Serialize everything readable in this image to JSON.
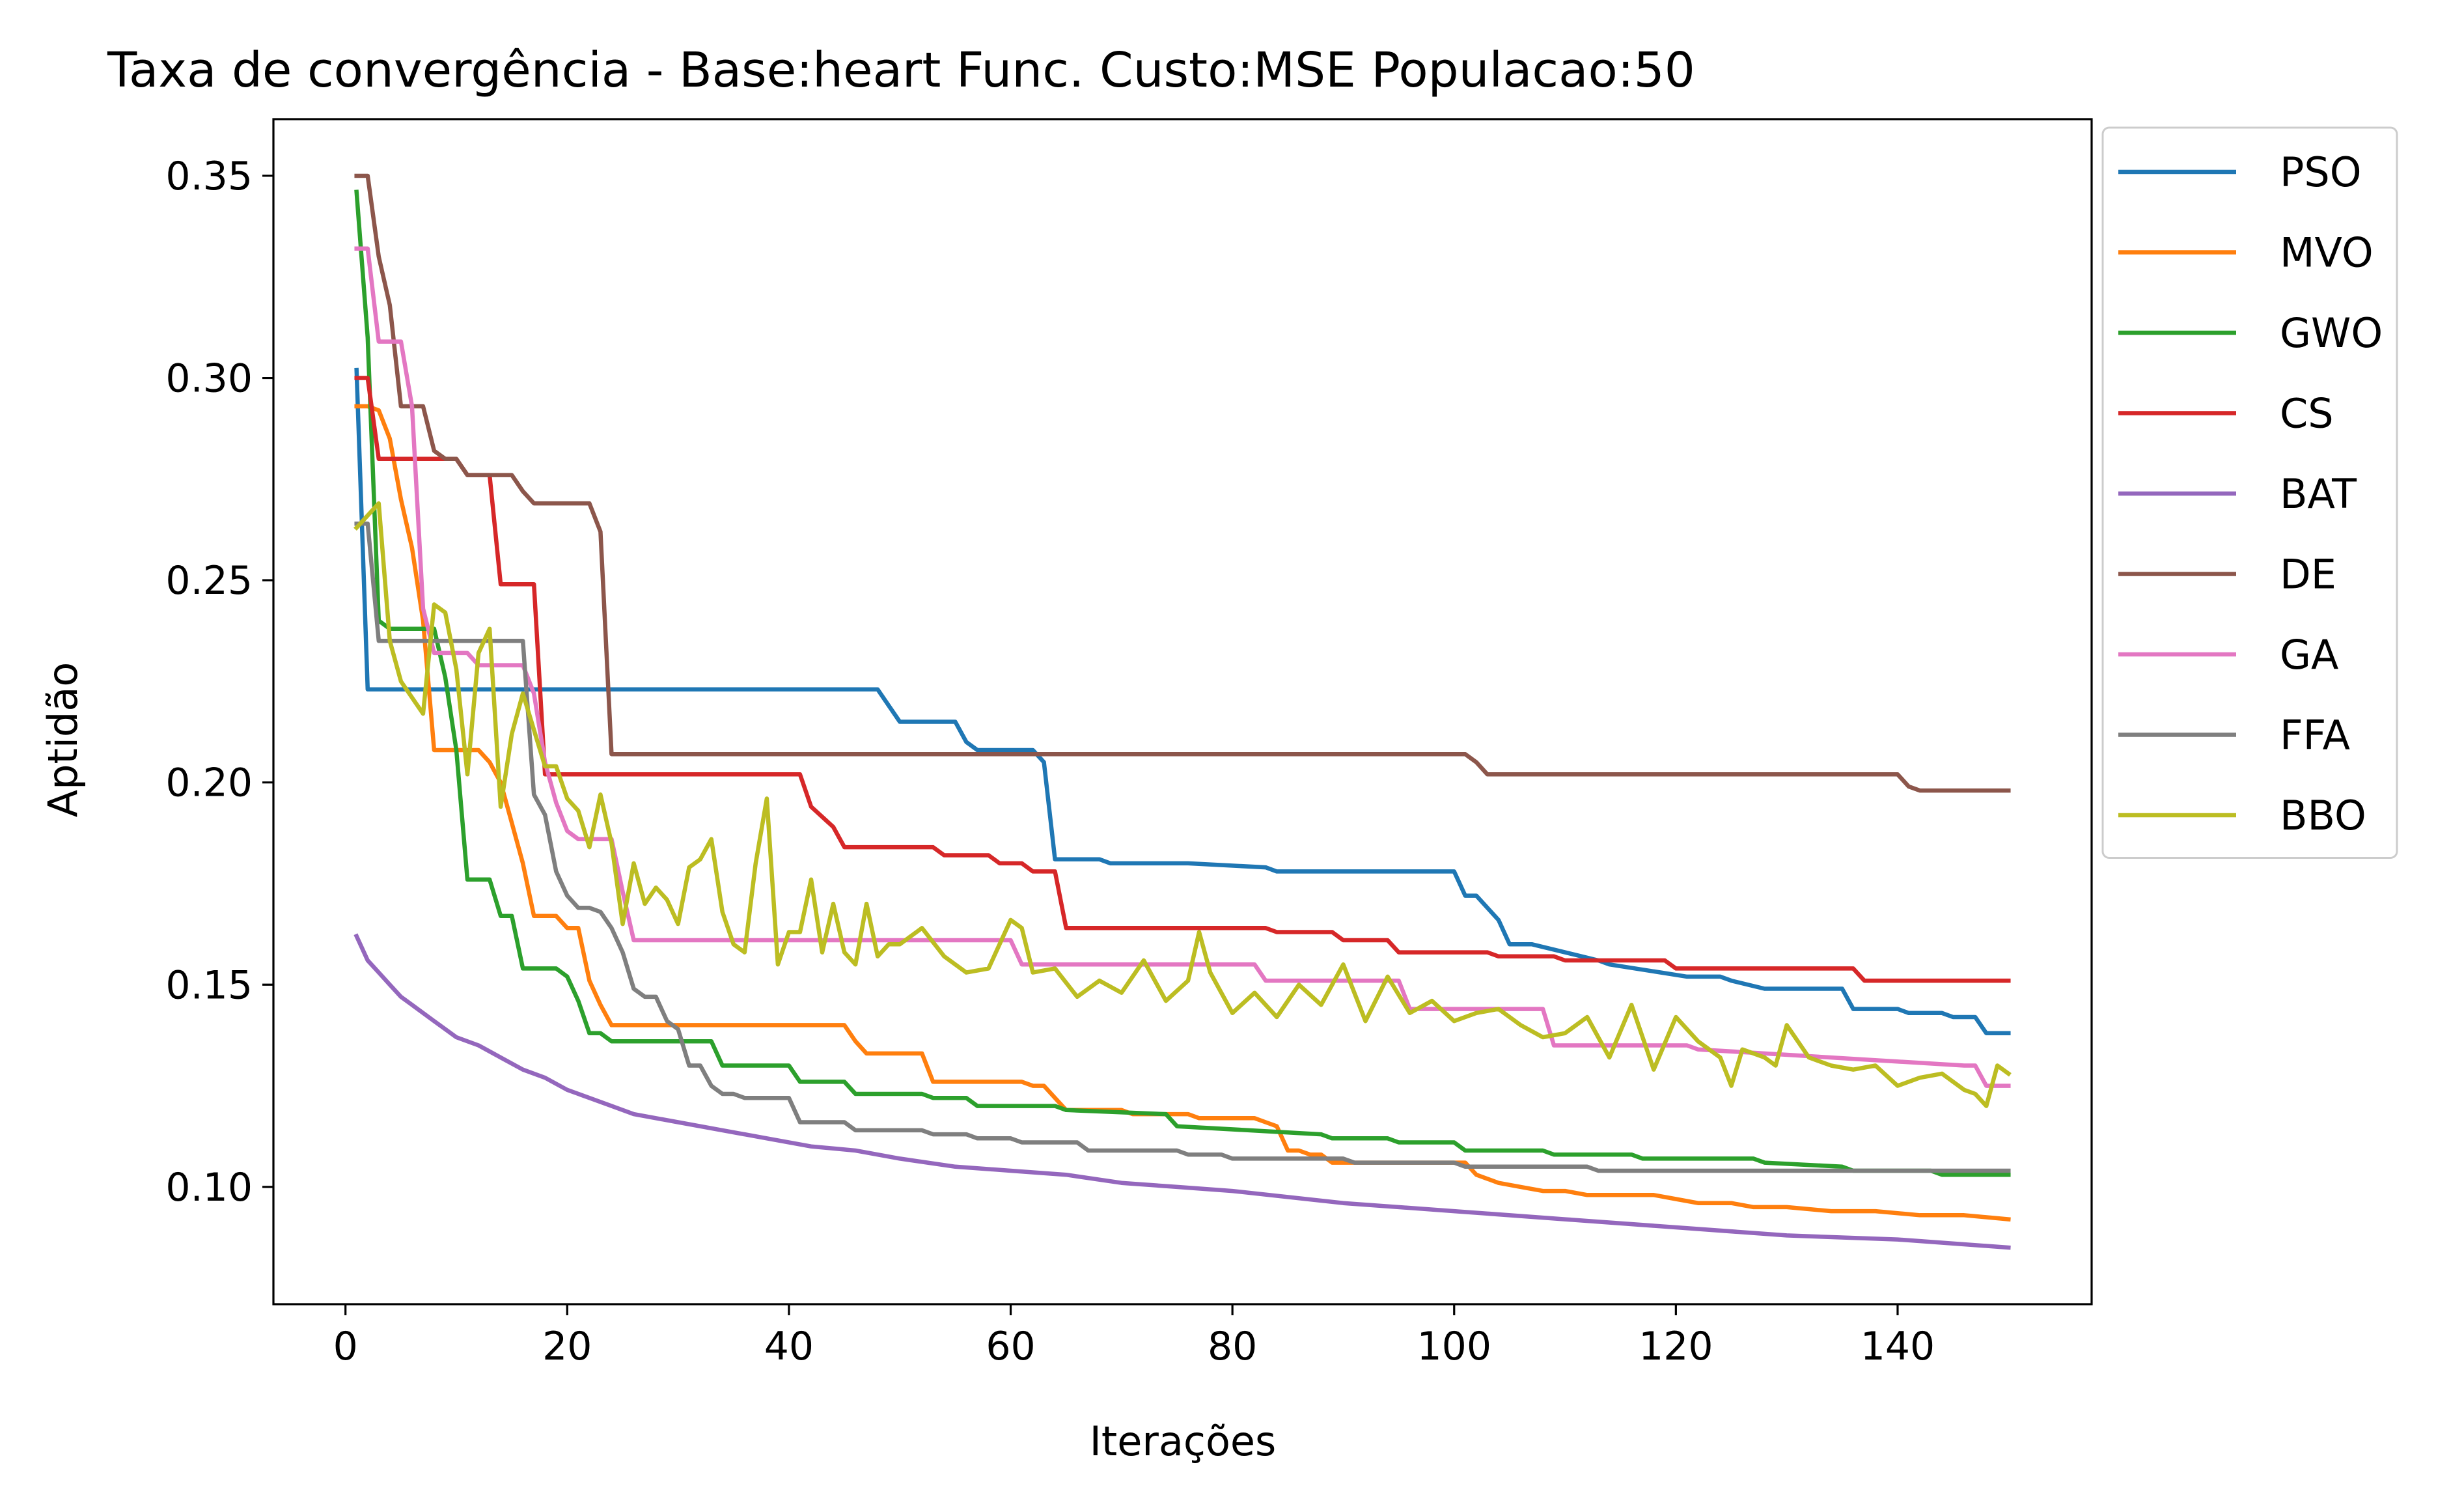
{
  "chart_data": {
    "type": "line",
    "title": "Taxa de convergência - Base:heart Func. Custo:MSE Populacao:50",
    "xlabel": "Iterações",
    "ylabel": "Aptidão",
    "xlim": [
      -6.5,
      157.5
    ],
    "ylim": [
      0.071,
      0.364
    ],
    "xticks": [
      0,
      20,
      40,
      60,
      80,
      100,
      120,
      140
    ],
    "xtick_labels": [
      "0",
      "20",
      "40",
      "60",
      "80",
      "100",
      "120",
      "140"
    ],
    "yticks": [
      0.1,
      0.15,
      0.2,
      0.25,
      0.3,
      0.35
    ],
    "ytick_labels": [
      "0.10",
      "0.15",
      "0.20",
      "0.25",
      "0.30",
      "0.35"
    ],
    "grid": false,
    "legend_placement": "outside-upper-right",
    "series": [
      {
        "name": "PSO",
        "color": "#1f77b4",
        "x": [
          1,
          2,
          3,
          48,
          49,
          50,
          51,
          55,
          56,
          57,
          62,
          63,
          64,
          65,
          68,
          69,
          75,
          76,
          83,
          84,
          89,
          100,
          101,
          102,
          104,
          105,
          106,
          107,
          113,
          114,
          121,
          124,
          125,
          128,
          131,
          135,
          136,
          140,
          141,
          144,
          145,
          147,
          148,
          150
        ],
        "y": [
          0.302,
          0.223,
          0.223,
          0.223,
          0.219,
          0.215,
          0.215,
          0.215,
          0.21,
          0.208,
          0.208,
          0.205,
          0.181,
          0.181,
          0.181,
          0.18,
          0.18,
          0.18,
          0.179,
          0.178,
          0.178,
          0.178,
          0.172,
          0.172,
          0.166,
          0.16,
          0.16,
          0.16,
          0.156,
          0.155,
          0.152,
          0.152,
          0.151,
          0.149,
          0.149,
          0.149,
          0.144,
          0.144,
          0.143,
          0.143,
          0.142,
          0.142,
          0.138,
          0.138
        ]
      },
      {
        "name": "MVO",
        "color": "#ff7f0e",
        "x": [
          1,
          2,
          3,
          4,
          5,
          6,
          7,
          8,
          9,
          10,
          11,
          12,
          13,
          14,
          15,
          16,
          17,
          18,
          19,
          20,
          21,
          22,
          23,
          24,
          25,
          26,
          27,
          45,
          46,
          47,
          48,
          52,
          53,
          61,
          62,
          63,
          64,
          65,
          66,
          70,
          71,
          76,
          77,
          82,
          83,
          84,
          85,
          86,
          87,
          88,
          89,
          90,
          91,
          101,
          102,
          103,
          104,
          106,
          108,
          110,
          112,
          114,
          118,
          120,
          122,
          125,
          127,
          130,
          134,
          138,
          142,
          146,
          150
        ],
        "y": [
          0.293,
          0.293,
          0.292,
          0.285,
          0.27,
          0.258,
          0.24,
          0.208,
          0.208,
          0.208,
          0.208,
          0.208,
          0.205,
          0.2,
          0.19,
          0.18,
          0.167,
          0.167,
          0.167,
          0.164,
          0.164,
          0.151,
          0.145,
          0.14,
          0.14,
          0.14,
          0.14,
          0.14,
          0.136,
          0.133,
          0.133,
          0.133,
          0.126,
          0.126,
          0.125,
          0.125,
          0.122,
          0.119,
          0.119,
          0.119,
          0.118,
          0.118,
          0.117,
          0.117,
          0.116,
          0.115,
          0.109,
          0.109,
          0.108,
          0.108,
          0.106,
          0.106,
          0.106,
          0.106,
          0.103,
          0.102,
          0.101,
          0.1,
          0.099,
          0.099,
          0.098,
          0.098,
          0.098,
          0.097,
          0.096,
          0.096,
          0.095,
          0.095,
          0.094,
          0.094,
          0.093,
          0.093,
          0.092
        ]
      },
      {
        "name": "GWO",
        "color": "#2ca02c",
        "x": [
          1,
          2,
          3,
          4,
          5,
          6,
          7,
          8,
          9,
          10,
          11,
          12,
          13,
          14,
          15,
          16,
          17,
          18,
          19,
          20,
          21,
          22,
          23,
          24,
          25,
          26,
          27,
          33,
          34,
          35,
          40,
          41,
          42,
          45,
          46,
          52,
          53,
          56,
          57,
          64,
          65,
          74,
          75,
          88,
          89,
          94,
          95,
          100,
          101,
          108,
          109,
          116,
          117,
          127,
          128,
          135,
          136,
          143,
          144,
          150
        ],
        "y": [
          0.346,
          0.31,
          0.24,
          0.238,
          0.238,
          0.238,
          0.238,
          0.238,
          0.226,
          0.208,
          0.176,
          0.176,
          0.176,
          0.167,
          0.167,
          0.154,
          0.154,
          0.154,
          0.154,
          0.152,
          0.146,
          0.138,
          0.138,
          0.136,
          0.136,
          0.136,
          0.136,
          0.136,
          0.13,
          0.13,
          0.13,
          0.126,
          0.126,
          0.126,
          0.123,
          0.123,
          0.122,
          0.122,
          0.12,
          0.12,
          0.119,
          0.118,
          0.115,
          0.113,
          0.112,
          0.112,
          0.111,
          0.111,
          0.109,
          0.109,
          0.108,
          0.108,
          0.107,
          0.107,
          0.106,
          0.105,
          0.104,
          0.104,
          0.103,
          0.103
        ]
      },
      {
        "name": "CS",
        "color": "#d62728",
        "x": [
          1,
          2,
          3,
          10,
          11,
          13,
          14,
          15,
          16,
          17,
          18,
          19,
          20,
          41,
          42,
          44,
          45,
          53,
          54,
          58,
          59,
          61,
          62,
          64,
          65,
          83,
          84,
          89,
          90,
          94,
          95,
          103,
          104,
          109,
          110,
          119,
          120,
          136,
          137,
          150
        ],
        "y": [
          0.3,
          0.3,
          0.28,
          0.28,
          0.276,
          0.276,
          0.249,
          0.249,
          0.249,
          0.249,
          0.202,
          0.202,
          0.202,
          0.202,
          0.194,
          0.189,
          0.184,
          0.184,
          0.182,
          0.182,
          0.18,
          0.18,
          0.178,
          0.178,
          0.164,
          0.164,
          0.163,
          0.163,
          0.161,
          0.161,
          0.158,
          0.158,
          0.157,
          0.157,
          0.156,
          0.156,
          0.154,
          0.154,
          0.151,
          0.151
        ]
      },
      {
        "name": "BAT",
        "color": "#9467bd",
        "x": [
          1,
          2,
          3,
          4,
          5,
          6,
          7,
          8,
          9,
          10,
          12,
          14,
          16,
          18,
          20,
          22,
          24,
          26,
          28,
          30,
          34,
          38,
          42,
          46,
          50,
          55,
          60,
          65,
          70,
          75,
          80,
          90,
          100,
          110,
          120,
          130,
          140,
          150
        ],
        "y": [
          0.162,
          0.156,
          0.153,
          0.15,
          0.147,
          0.145,
          0.143,
          0.141,
          0.139,
          0.137,
          0.135,
          0.132,
          0.129,
          0.127,
          0.124,
          0.122,
          0.12,
          0.118,
          0.117,
          0.116,
          0.114,
          0.112,
          0.11,
          0.109,
          0.107,
          0.105,
          0.104,
          0.103,
          0.101,
          0.1,
          0.099,
          0.096,
          0.094,
          0.092,
          0.09,
          0.088,
          0.087,
          0.085
        ]
      },
      {
        "name": "DE",
        "color": "#8c564b",
        "x": [
          1,
          2,
          3,
          4,
          5,
          6,
          7,
          8,
          9,
          10,
          11,
          12,
          15,
          16,
          17,
          18,
          19,
          20,
          21,
          22,
          23,
          24,
          25,
          101,
          102,
          103,
          104,
          140,
          141,
          142,
          150
        ],
        "y": [
          0.35,
          0.35,
          0.33,
          0.318,
          0.293,
          0.293,
          0.293,
          0.282,
          0.28,
          0.28,
          0.276,
          0.276,
          0.276,
          0.272,
          0.269,
          0.269,
          0.269,
          0.269,
          0.269,
          0.269,
          0.262,
          0.207,
          0.207,
          0.207,
          0.205,
          0.202,
          0.202,
          0.202,
          0.199,
          0.198,
          0.198
        ]
      },
      {
        "name": "GA",
        "color": "#e377c2",
        "x": [
          1,
          2,
          3,
          4,
          5,
          6,
          7,
          8,
          9,
          10,
          11,
          12,
          13,
          14,
          15,
          16,
          17,
          18,
          19,
          20,
          21,
          22,
          23,
          24,
          25,
          26,
          27,
          28,
          60,
          61,
          62,
          65,
          66,
          82,
          83,
          95,
          96,
          107,
          108,
          109,
          121,
          122,
          146,
          147,
          148,
          150
        ],
        "y": [
          0.332,
          0.332,
          0.309,
          0.309,
          0.309,
          0.293,
          0.243,
          0.232,
          0.232,
          0.232,
          0.232,
          0.229,
          0.229,
          0.229,
          0.229,
          0.229,
          0.222,
          0.205,
          0.195,
          0.188,
          0.186,
          0.186,
          0.186,
          0.186,
          0.173,
          0.161,
          0.161,
          0.161,
          0.161,
          0.155,
          0.155,
          0.155,
          0.155,
          0.155,
          0.151,
          0.151,
          0.144,
          0.144,
          0.144,
          0.135,
          0.135,
          0.134,
          0.13,
          0.13,
          0.125,
          0.125
        ]
      },
      {
        "name": "FFA",
        "color": "#7f7f7f",
        "x": [
          1,
          2,
          3,
          4,
          5,
          6,
          7,
          8,
          9,
          10,
          15,
          16,
          17,
          18,
          19,
          20,
          21,
          22,
          23,
          24,
          25,
          26,
          27,
          28,
          29,
          30,
          31,
          32,
          33,
          34,
          35,
          36,
          40,
          41,
          42,
          45,
          46,
          52,
          53,
          56,
          57,
          60,
          61,
          66,
          67,
          75,
          76,
          79,
          80,
          90,
          91,
          100,
          101,
          112,
          113,
          150
        ],
        "y": [
          0.264,
          0.264,
          0.235,
          0.235,
          0.235,
          0.235,
          0.235,
          0.235,
          0.235,
          0.235,
          0.235,
          0.235,
          0.197,
          0.192,
          0.178,
          0.172,
          0.169,
          0.169,
          0.168,
          0.164,
          0.158,
          0.149,
          0.147,
          0.147,
          0.141,
          0.139,
          0.13,
          0.13,
          0.125,
          0.123,
          0.123,
          0.122,
          0.122,
          0.116,
          0.116,
          0.116,
          0.114,
          0.114,
          0.113,
          0.113,
          0.112,
          0.112,
          0.111,
          0.111,
          0.109,
          0.109,
          0.108,
          0.108,
          0.107,
          0.107,
          0.106,
          0.106,
          0.105,
          0.105,
          0.104,
          0.104
        ]
      },
      {
        "name": "BBO",
        "color": "#bcbd22",
        "x": [
          1,
          2,
          3,
          4,
          5,
          6,
          7,
          8,
          9,
          10,
          11,
          12,
          13,
          14,
          15,
          16,
          17,
          18,
          19,
          20,
          21,
          22,
          23,
          24,
          25,
          26,
          27,
          28,
          29,
          30,
          31,
          32,
          33,
          34,
          35,
          36,
          37,
          38,
          39,
          40,
          41,
          42,
          43,
          44,
          45,
          46,
          47,
          48,
          49,
          50,
          52,
          54,
          56,
          58,
          60,
          61,
          62,
          64,
          66,
          68,
          70,
          72,
          74,
          76,
          77,
          78,
          80,
          82,
          84,
          86,
          88,
          90,
          92,
          94,
          96,
          98,
          100,
          102,
          104,
          106,
          108,
          110,
          112,
          114,
          116,
          118,
          120,
          122,
          124,
          125,
          126,
          128,
          129,
          130,
          132,
          134,
          136,
          138,
          140,
          142,
          144,
          146,
          147,
          148,
          149,
          150
        ],
        "y": [
          0.263,
          0.266,
          0.269,
          0.235,
          0.225,
          0.221,
          0.217,
          0.244,
          0.242,
          0.228,
          0.202,
          0.232,
          0.238,
          0.194,
          0.212,
          0.222,
          0.213,
          0.204,
          0.204,
          0.196,
          0.193,
          0.184,
          0.197,
          0.185,
          0.165,
          0.18,
          0.17,
          0.174,
          0.171,
          0.165,
          0.179,
          0.181,
          0.186,
          0.168,
          0.16,
          0.158,
          0.18,
          0.196,
          0.155,
          0.163,
          0.163,
          0.176,
          0.158,
          0.17,
          0.158,
          0.155,
          0.17,
          0.157,
          0.16,
          0.16,
          0.164,
          0.157,
          0.153,
          0.154,
          0.166,
          0.164,
          0.153,
          0.154,
          0.147,
          0.151,
          0.148,
          0.156,
          0.146,
          0.151,
          0.163,
          0.153,
          0.143,
          0.148,
          0.142,
          0.15,
          0.145,
          0.155,
          0.141,
          0.152,
          0.143,
          0.146,
          0.141,
          0.143,
          0.144,
          0.14,
          0.137,
          0.138,
          0.142,
          0.132,
          0.145,
          0.129,
          0.142,
          0.136,
          0.132,
          0.125,
          0.134,
          0.132,
          0.13,
          0.14,
          0.132,
          0.13,
          0.129,
          0.13,
          0.125,
          0.127,
          0.128,
          0.124,
          0.123,
          0.12,
          0.13,
          0.128
        ]
      }
    ]
  }
}
